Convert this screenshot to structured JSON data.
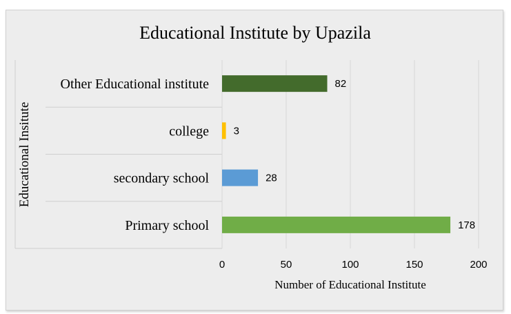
{
  "chart_data": {
    "type": "bar",
    "orientation": "horizontal",
    "title": "Educational Institute by Upazila",
    "xlabel": "Number of Educational Institute",
    "ylabel": "Educational Insitute",
    "categories": [
      "Primary school",
      "secondary school",
      "college",
      "Other Educational institute"
    ],
    "values": [
      178,
      28,
      3,
      82
    ],
    "colors": [
      "#70ad47",
      "#5b9bd5",
      "#ffc000",
      "#436b2c"
    ],
    "xlim": [
      0,
      200
    ],
    "xticks": [
      0,
      50,
      100,
      150,
      200
    ],
    "grid": true,
    "legend": "none",
    "data_labels": true
  }
}
